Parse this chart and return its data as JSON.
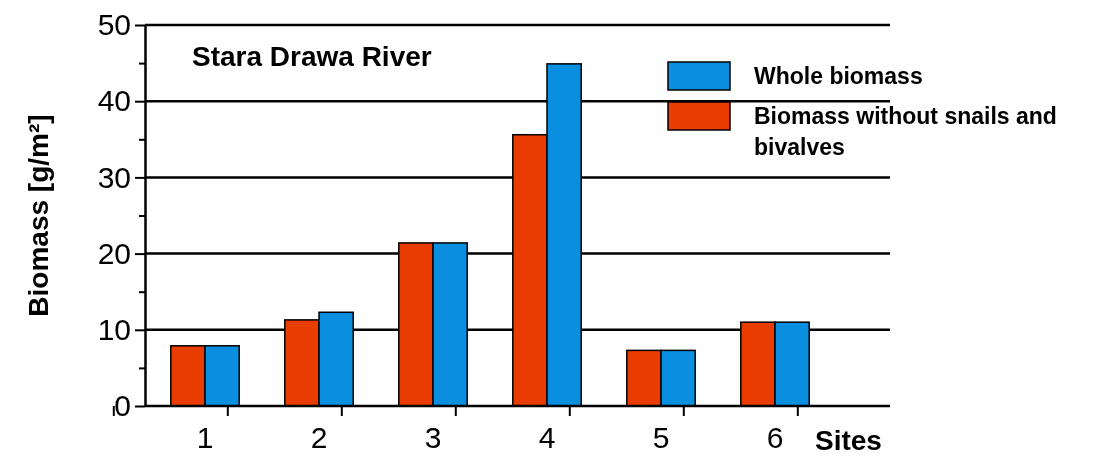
{
  "chart_data": {
    "type": "bar",
    "title": "Stara Drawa River",
    "xlabel": "Sites",
    "ylabel": "Biomass [g/m²]",
    "categories": [
      "1",
      "2",
      "3",
      "4",
      "5",
      "6"
    ],
    "series": [
      {
        "name": "Biomass without snails and bivalves",
        "color": "#e83c00",
        "values": [
          7.9,
          11.3,
          21.4,
          35.6,
          7.3,
          11.0
        ]
      },
      {
        "name": "Whole biomass",
        "color": "#0a8ee0",
        "values": [
          7.9,
          12.3,
          21.4,
          44.9,
          7.3,
          11.0
        ]
      }
    ],
    "ylim": [
      0,
      50
    ],
    "yticks": [
      0,
      {
        "value": 5,
        "label": null
      },
      10,
      {
        "value": 15,
        "label": null
      },
      20,
      {
        "value": 25,
        "label": null
      },
      30,
      {
        "value": 35,
        "label": null
      },
      40,
      {
        "value": 45,
        "label": null
      },
      50
    ],
    "grid": "y",
    "legend": "top right"
  }
}
